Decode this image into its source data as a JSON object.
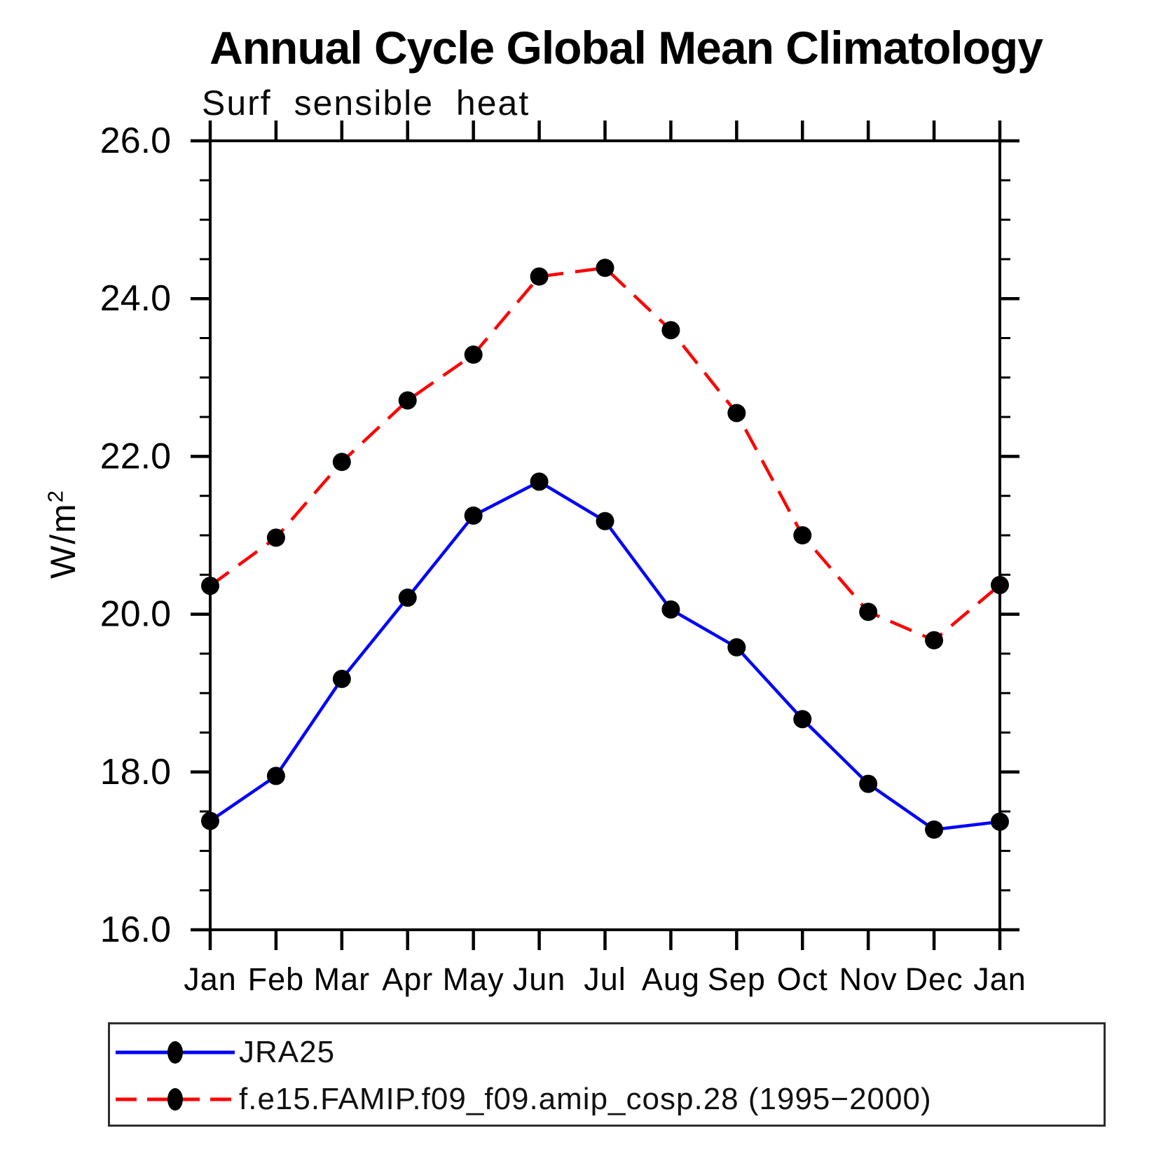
{
  "header": {
    "title": "Annual Cycle Global Mean Climatology",
    "subtitle": "Surf sensible heat"
  },
  "y_axis": {
    "label_prefix": "W/m",
    "label_exponent": "2"
  },
  "chart_data": {
    "type": "line",
    "title": "Annual Cycle Global Mean Climatology",
    "subtitle": "Surf sensible heat",
    "ylabel": "W/m^2",
    "xlabel": "",
    "categories": [
      "Jan",
      "Feb",
      "Mar",
      "Apr",
      "May",
      "Jun",
      "Jul",
      "Aug",
      "Sep",
      "Oct",
      "Nov",
      "Dec",
      "Jan"
    ],
    "ylim": [
      16.0,
      26.0
    ],
    "ytick_values": [
      16.0,
      18.0,
      20.0,
      22.0,
      24.0,
      26.0
    ],
    "ytick_labels": [
      "16.0",
      "18.0",
      "20.0",
      "22.0",
      "24.0",
      "26.0"
    ],
    "ytick_minor_step": 0.5,
    "grid": false,
    "legend_position": "bottom",
    "marker_color": "#000000",
    "axis_color": "#000000",
    "series": [
      {
        "name": "JRA25",
        "color": "#0000ff",
        "line_style": "solid",
        "marker": "circle",
        "values": [
          17.38,
          17.95,
          19.18,
          20.21,
          21.25,
          21.68,
          21.18,
          20.06,
          19.58,
          18.67,
          17.85,
          17.27,
          17.37
        ]
      },
      {
        "name": "f.e15.FAMIP.f09_f09.amip_cosp.28 (1995−2000)",
        "color": "#ff0000",
        "line_style": "dashed",
        "marker": "circle",
        "values": [
          20.36,
          20.97,
          21.93,
          22.71,
          23.29,
          24.28,
          24.39,
          23.6,
          22.55,
          21.0,
          20.03,
          19.67,
          20.37
        ]
      }
    ]
  }
}
